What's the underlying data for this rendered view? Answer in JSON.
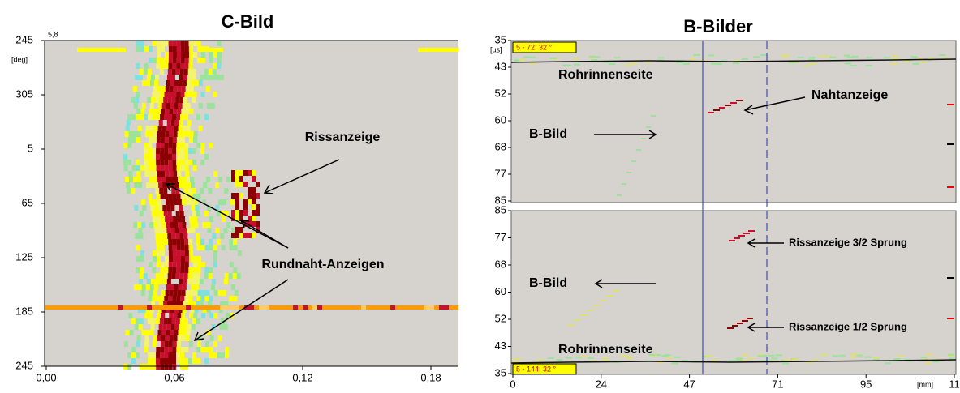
{
  "c_bild": {
    "title": "C-Bild",
    "corner_label": "5,8",
    "y_unit": "[deg]",
    "y_labels": [
      "245",
      "305",
      "5",
      "65",
      "125",
      "185",
      "245"
    ],
    "x_labels": [
      "0,00",
      "0,06",
      "0,12",
      "0,18"
    ],
    "annotations": [
      "Rissanzeige",
      "Rundnaht-Anzeigen"
    ]
  },
  "b_bilder": {
    "title": "B-Bilder",
    "y_unit": "[µs]",
    "top": {
      "badge": "5 - 72: 32 °",
      "y_labels": [
        "35",
        "43",
        "52",
        "60",
        "68",
        "77",
        "85"
      ],
      "annotations": [
        "Rohrinnenseite",
        "Nahtanzeige",
        "B-Bild"
      ]
    },
    "bottom": {
      "badge": "5 - 144: 32 °",
      "y_labels": [
        "85",
        "77",
        "68",
        "60",
        "52",
        "43",
        "35"
      ],
      "annotations": [
        "Rissanzeige 3/2 Sprung",
        "Rissanzeige 1/2 Sprung",
        "B-Bild",
        "Rohrinnenseite"
      ]
    },
    "x_labels": [
      "0",
      "24",
      "47",
      "71",
      "95",
      "11"
    ],
    "x_unit": "[mm]"
  }
}
